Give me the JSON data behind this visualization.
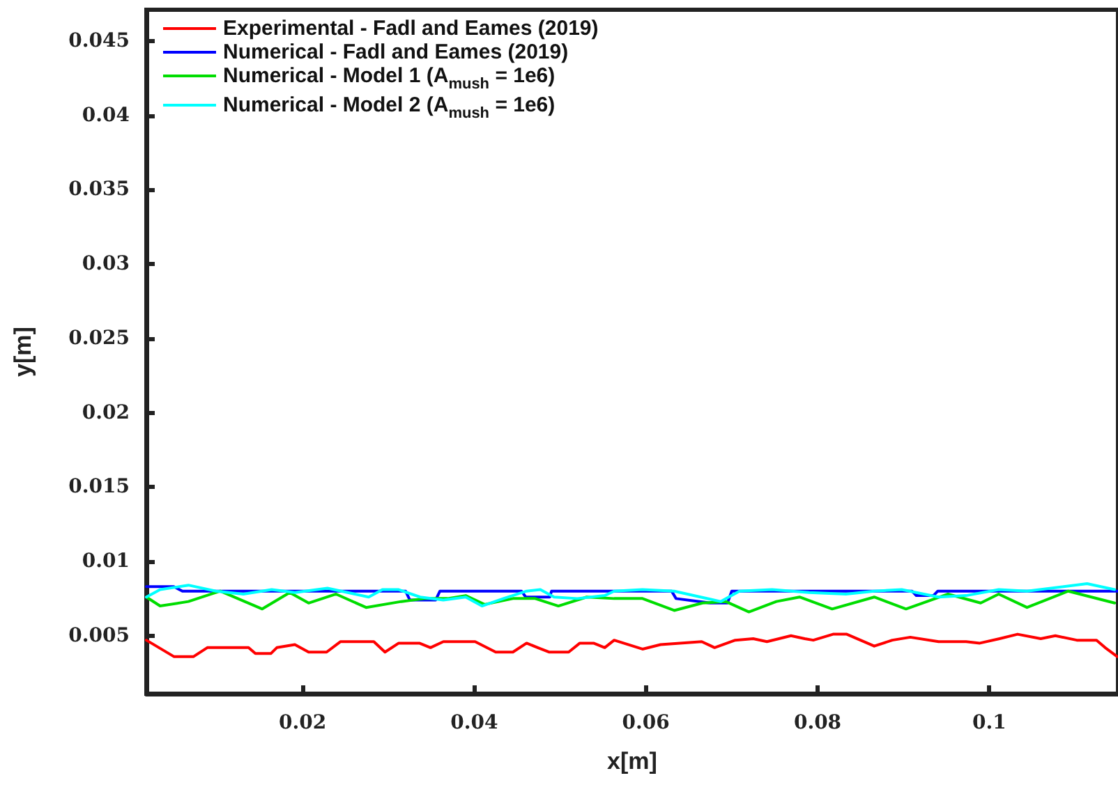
{
  "chart_data": {
    "type": "line",
    "xlabel": "x[m]",
    "ylabel": "y[m]",
    "xlim": [
      0.0018,
      0.115
    ],
    "xticks": [
      0.02,
      0.04,
      0.06,
      0.08,
      0.1
    ],
    "ylim": [
      0.0011,
      0.0471
    ],
    "yticks": [
      0.005,
      0.01,
      0.015,
      0.02,
      0.025,
      0.03,
      0.035,
      0.04,
      0.045
    ],
    "grid": false,
    "legend": "top left",
    "marker": "none",
    "line_style": "solid",
    "series": [
      {
        "name": "Experimental - Fadl and Eames (2019)",
        "color": "#ff0000",
        "x": [
          0.0018,
          0.005,
          0.0073,
          0.0089,
          0.0137,
          0.0145,
          0.0163,
          0.017,
          0.0191,
          0.0207,
          0.0228,
          0.0244,
          0.0283,
          0.0296,
          0.0312,
          0.0336,
          0.0349,
          0.0364,
          0.0401,
          0.0425,
          0.0445,
          0.0461,
          0.0474,
          0.0487,
          0.051,
          0.0523,
          0.0539,
          0.0552,
          0.0563,
          0.0596,
          0.0617,
          0.0665,
          0.068,
          0.0704,
          0.0725,
          0.0741,
          0.0769,
          0.0785,
          0.0795,
          0.0818,
          0.0834,
          0.0866,
          0.0887,
          0.0908,
          0.0941,
          0.0973,
          0.0989,
          0.1012,
          0.1033,
          0.106,
          0.1077,
          0.1102,
          0.1125,
          0.1135,
          0.1149
        ],
        "values": [
          0.0047,
          0.0036,
          0.0036,
          0.0042,
          0.0042,
          0.0038,
          0.0038,
          0.0042,
          0.0044,
          0.0039,
          0.0039,
          0.0046,
          0.0046,
          0.0039,
          0.0045,
          0.0045,
          0.0042,
          0.0046,
          0.0046,
          0.0039,
          0.0039,
          0.0045,
          0.0042,
          0.0039,
          0.0039,
          0.0045,
          0.0045,
          0.0042,
          0.0047,
          0.0041,
          0.0044,
          0.0046,
          0.0042,
          0.0047,
          0.0048,
          0.0046,
          0.005,
          0.0048,
          0.0047,
          0.0051,
          0.0051,
          0.0043,
          0.0047,
          0.0049,
          0.0046,
          0.0046,
          0.0045,
          0.0048,
          0.0051,
          0.0048,
          0.005,
          0.0047,
          0.0047,
          0.0042,
          0.0036
        ]
      },
      {
        "name": "Numerical - Fadl and Eames (2019)",
        "color": "#0000ff",
        "x": [
          0.0018,
          0.005,
          0.006,
          0.032,
          0.0325,
          0.0355,
          0.036,
          0.0455,
          0.046,
          0.0488,
          0.049,
          0.063,
          0.0635,
          0.0675,
          0.0695,
          0.07,
          0.091,
          0.0915,
          0.0935,
          0.094,
          0.115
        ],
        "values": [
          0.0083,
          0.0083,
          0.008,
          0.008,
          0.0074,
          0.0074,
          0.008,
          0.008,
          0.0076,
          0.0076,
          0.008,
          0.008,
          0.0075,
          0.0072,
          0.0072,
          0.008,
          0.008,
          0.0077,
          0.0077,
          0.008,
          0.008
        ]
      },
      {
        "name": "Numerical - Model 1 (A$_{mush}$ = 1e6)",
        "color": "#00dd00",
        "x": [
          0.0018,
          0.0034,
          0.0067,
          0.0104,
          0.0153,
          0.0185,
          0.0207,
          0.0239,
          0.0274,
          0.0315,
          0.0342,
          0.0369,
          0.039,
          0.0412,
          0.0445,
          0.0471,
          0.0498,
          0.0531,
          0.0563,
          0.0596,
          0.0633,
          0.0666,
          0.0693,
          0.072,
          0.0752,
          0.0779,
          0.0817,
          0.0866,
          0.0903,
          0.0952,
          0.099,
          0.1011,
          0.1044,
          0.1092,
          0.1146
        ],
        "values": [
          0.0076,
          0.007,
          0.0073,
          0.008,
          0.0068,
          0.0079,
          0.0072,
          0.0078,
          0.0069,
          0.0073,
          0.0075,
          0.0075,
          0.0077,
          0.0071,
          0.0075,
          0.0075,
          0.007,
          0.0076,
          0.0075,
          0.0075,
          0.0067,
          0.0072,
          0.0073,
          0.0066,
          0.0073,
          0.0076,
          0.0068,
          0.0076,
          0.0068,
          0.0078,
          0.0072,
          0.0078,
          0.0069,
          0.008,
          0.0072
        ]
      },
      {
        "name": "Numerical - Model 2 (A$_{mush}$ = 1e6)",
        "color": "#00ffff",
        "x": [
          0.0018,
          0.0034,
          0.0067,
          0.0099,
          0.0131,
          0.0164,
          0.0191,
          0.0229,
          0.0245,
          0.0277,
          0.0293,
          0.0312,
          0.0337,
          0.0364,
          0.039,
          0.0409,
          0.0434,
          0.0461,
          0.0477,
          0.0493,
          0.052,
          0.0552,
          0.0563,
          0.0596,
          0.0633,
          0.0687,
          0.0709,
          0.0747,
          0.079,
          0.0833,
          0.0866,
          0.0898,
          0.0941,
          0.0973,
          0.1011,
          0.1044,
          0.1114,
          0.1146
        ],
        "values": [
          0.0076,
          0.0081,
          0.0084,
          0.008,
          0.0078,
          0.0081,
          0.0079,
          0.0082,
          0.008,
          0.0076,
          0.0081,
          0.0081,
          0.0076,
          0.0074,
          0.0076,
          0.007,
          0.0075,
          0.008,
          0.0081,
          0.0076,
          0.0075,
          0.0077,
          0.008,
          0.0081,
          0.008,
          0.0073,
          0.008,
          0.0081,
          0.0079,
          0.0078,
          0.008,
          0.0081,
          0.0076,
          0.0077,
          0.0081,
          0.008,
          0.0085,
          0.0081
        ]
      }
    ]
  }
}
